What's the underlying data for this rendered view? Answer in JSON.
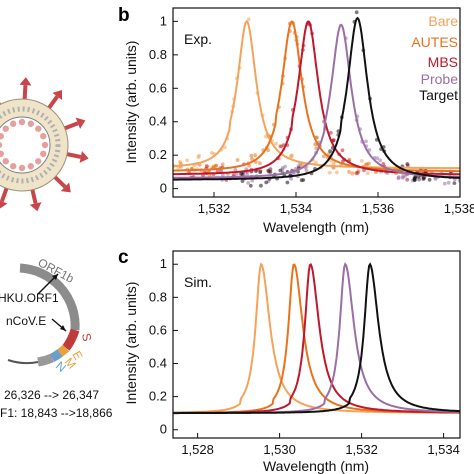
{
  "panels": {
    "b": "b",
    "c": "c"
  },
  "virus": {
    "gene_labels": {
      "orf1b": "ORF1b",
      "s": "S",
      "e": "E",
      "m": "M",
      "n": "N"
    },
    "targets": [
      "HKU.ORF1",
      "nCoV.E"
    ],
    "ranges": [
      "26,326 --> 26,347",
      "F1: 18,843 -->18,866"
    ],
    "colors": {
      "spike": "#c8464a",
      "capsid": "#e3a19d",
      "lipid": "#f0e4c8",
      "ring": "#8c8c8c",
      "s_band": "#c03a3a"
    }
  },
  "legend": [
    {
      "label": "Bare",
      "color": "#f4a35a"
    },
    {
      "label": "AUTES",
      "color": "#e8731c"
    },
    {
      "label": "MBS",
      "color": "#c0182a"
    },
    {
      "label": "Probe",
      "color": "#9a6fa5"
    },
    {
      "label": "Target",
      "color": "#111111"
    }
  ],
  "chart_data": [
    {
      "type": "line",
      "panel": "b",
      "tag": "Exp.",
      "xlabel": "Wavelength (nm)",
      "ylabel": "Intensity (arb. units)",
      "xlim": [
        1531,
        1538
      ],
      "ylim": [
        -0.05,
        1.08
      ],
      "xticks": [
        "1,532",
        "1,534",
        "1,536",
        "1,538"
      ],
      "xtick_values": [
        1532,
        1534,
        1536,
        1538
      ],
      "yticks": [
        "0",
        "0.2",
        "0.4",
        "0.6",
        "0.8",
        "1"
      ],
      "ytick_values": [
        0,
        0.2,
        0.4,
        0.6,
        0.8,
        1
      ],
      "series": [
        {
          "name": "Bare",
          "color": "#f4a35a",
          "peak": 1532.8,
          "width": 0.28,
          "baseline": 0.12,
          "peak_height": 1.0
        },
        {
          "name": "AUTES",
          "color": "#e8731c",
          "peak": 1533.9,
          "width": 0.3,
          "baseline": 0.1,
          "peak_height": 1.0
        },
        {
          "name": "MBS",
          "color": "#c0182a",
          "peak": 1534.3,
          "width": 0.3,
          "baseline": 0.08,
          "peak_height": 1.0
        },
        {
          "name": "Probe",
          "color": "#9a6fa5",
          "peak": 1535.1,
          "width": 0.3,
          "baseline": 0.06,
          "peak_height": 0.98
        },
        {
          "name": "Target",
          "color": "#111111",
          "peak": 1535.5,
          "width": 0.3,
          "baseline": 0.05,
          "peak_height": 1.02
        }
      ]
    },
    {
      "type": "line",
      "panel": "c",
      "tag": "Sim.",
      "xlabel": "Wavelength (nm)",
      "ylabel": "Intensity (arb. units)",
      "xlim": [
        1527.4,
        1534.4
      ],
      "ylim": [
        -0.05,
        1.08
      ],
      "xticks": [
        "1,528",
        "1,530",
        "1,532",
        "1,534"
      ],
      "xtick_values": [
        1528,
        1530,
        1532,
        1534
      ],
      "yticks": [
        "0",
        "0.2",
        "0.4",
        "0.6",
        "0.8",
        "1"
      ],
      "ytick_values": [
        0,
        0.2,
        0.4,
        0.6,
        0.8,
        1
      ],
      "series": [
        {
          "name": "Bare",
          "color": "#f4a35a",
          "peak": 1529.55,
          "width": 0.26,
          "baseline": 0.1,
          "peak_height": 1.0
        },
        {
          "name": "AUTES",
          "color": "#e8731c",
          "peak": 1530.35,
          "width": 0.26,
          "baseline": 0.1,
          "peak_height": 1.0
        },
        {
          "name": "MBS",
          "color": "#c0182a",
          "peak": 1530.75,
          "width": 0.26,
          "baseline": 0.1,
          "peak_height": 1.0
        },
        {
          "name": "Probe",
          "color": "#9a6fa5",
          "peak": 1531.6,
          "width": 0.26,
          "baseline": 0.1,
          "peak_height": 1.0
        },
        {
          "name": "Target",
          "color": "#111111",
          "peak": 1532.2,
          "width": 0.26,
          "baseline": 0.1,
          "peak_height": 1.0
        }
      ]
    }
  ]
}
